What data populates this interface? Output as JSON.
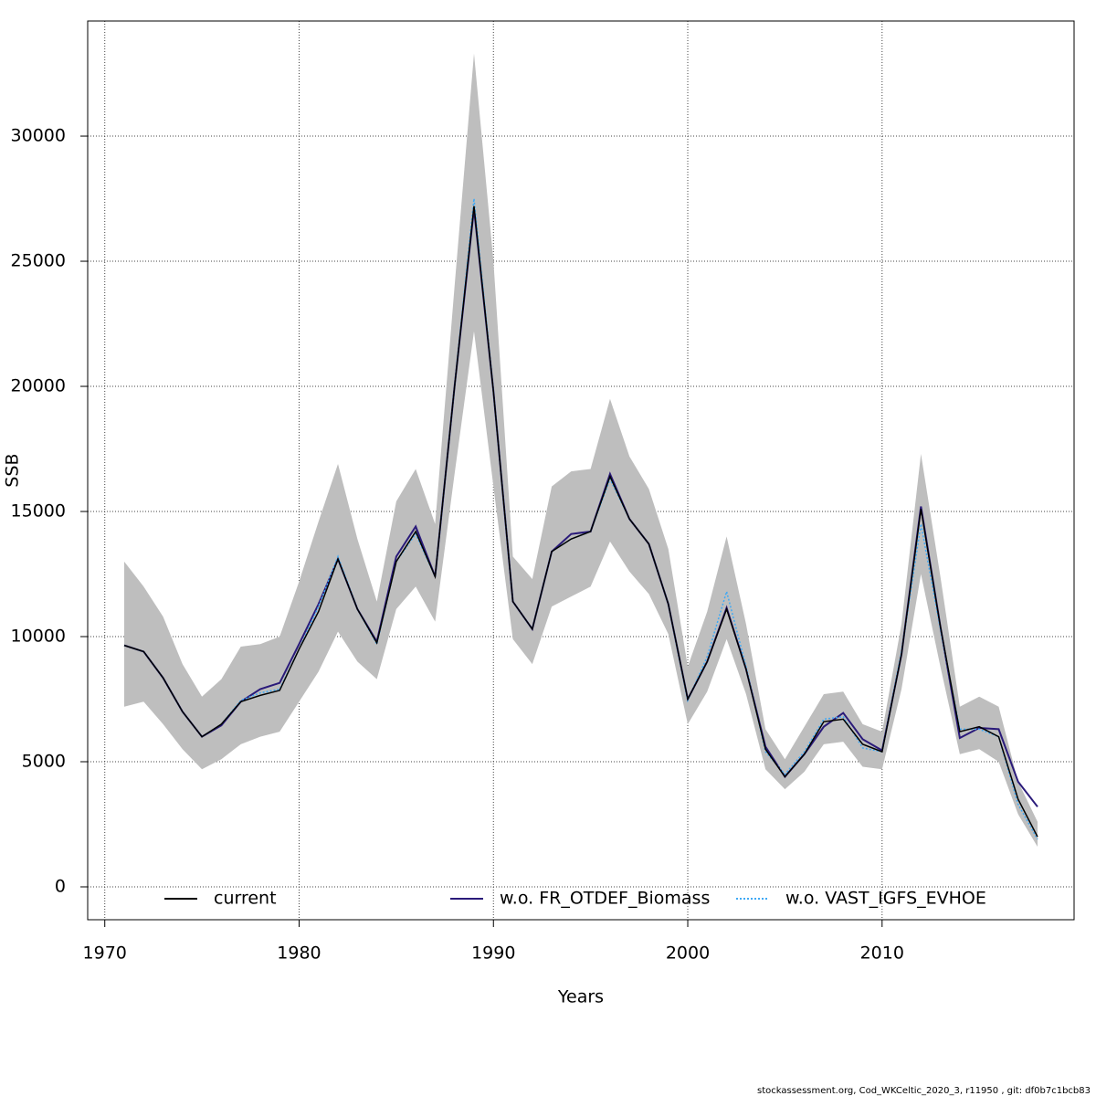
{
  "chart_data": {
    "type": "line",
    "xlabel": "Years",
    "ylabel": "SSB",
    "footer": "stockassessment.org, Cod_WKCeltic_2020_3, r11950 , git: df0b7c1bcb83",
    "x": [
      1971,
      1972,
      1973,
      1974,
      1975,
      1976,
      1977,
      1978,
      1979,
      1980,
      1981,
      1982,
      1983,
      1984,
      1985,
      1986,
      1987,
      1988,
      1989,
      1990,
      1991,
      1992,
      1993,
      1994,
      1995,
      1996,
      1997,
      1998,
      1999,
      2000,
      2001,
      2002,
      2003,
      2004,
      2005,
      2006,
      2007,
      2008,
      2009,
      2010,
      2011,
      2012,
      2013,
      2014,
      2015,
      2016,
      2017,
      2018
    ],
    "band": {
      "color": "#bebebe",
      "upper": [
        13000,
        12000,
        10800,
        8900,
        7600,
        8300,
        9600,
        9700,
        10000,
        12200,
        14600,
        16900,
        13900,
        11400,
        15400,
        16700,
        14500,
        24000,
        33300,
        25000,
        13200,
        12300,
        16000,
        16600,
        16700,
        19500,
        17200,
        15900,
        13500,
        8800,
        11000,
        14000,
        10500,
        6300,
        5100,
        6400,
        7700,
        7800,
        6500,
        6200,
        10500,
        17300,
        12400,
        7200,
        7600,
        7200,
        4200,
        2600
      ],
      "lower": [
        7200,
        7400,
        6500,
        5500,
        4700,
        5100,
        5700,
        6000,
        6200,
        7400,
        8600,
        10200,
        9000,
        8300,
        11100,
        12000,
        10600,
        16500,
        22200,
        16000,
        9900,
        8900,
        11200,
        11600,
        12000,
        13800,
        12600,
        11700,
        10100,
        6500,
        7800,
        9900,
        7700,
        4700,
        3900,
        4600,
        5700,
        5800,
        4800,
        4700,
        7900,
        12500,
        8800,
        5300,
        5500,
        5000,
        2900,
        1600
      ]
    },
    "series": [
      {
        "name": "current",
        "color": "#000000",
        "linestyle": "solid",
        "values": [
          9650,
          9400,
          8350,
          7000,
          6000,
          6500,
          7400,
          7650,
          7850,
          9500,
          11000,
          13100,
          11100,
          9750,
          13000,
          14200,
          12400,
          20000,
          27200,
          19800,
          11400,
          10300,
          13400,
          13900,
          14200,
          16400,
          14700,
          13700,
          11300,
          7500,
          9000,
          11100,
          8700,
          5500,
          4400,
          5300,
          6600,
          6700,
          5700,
          5400,
          9300,
          15100,
          10400,
          6200,
          6400,
          6000,
          3500,
          2000
        ]
      },
      {
        "name": "w.o. FR_OTDEF_Biomass",
        "color": "#2a1a7a",
        "linestyle": "solid",
        "values": [
          9650,
          9400,
          8350,
          7000,
          6000,
          6450,
          7400,
          7900,
          8150,
          9700,
          11300,
          13100,
          11100,
          9800,
          13200,
          14400,
          12400,
          20000,
          27100,
          19800,
          11400,
          10300,
          13400,
          14100,
          14200,
          16500,
          14700,
          13700,
          11300,
          7500,
          9000,
          11150,
          8700,
          5600,
          4400,
          5300,
          6400,
          6950,
          5900,
          5450,
          9300,
          15200,
          10400,
          5950,
          6350,
          6300,
          4200,
          3200
        ]
      },
      {
        "name": "w.o. VAST_IGFS_EVHOE",
        "color": "#3fa9f5",
        "linestyle": "dotted",
        "values": [
          9650,
          9400,
          8350,
          7000,
          6000,
          6500,
          7450,
          7750,
          7900,
          9500,
          11200,
          13200,
          11100,
          9700,
          13000,
          14100,
          12400,
          20000,
          27500,
          19800,
          11400,
          10300,
          13400,
          13900,
          14200,
          16300,
          14700,
          13700,
          11300,
          7450,
          9200,
          11800,
          8800,
          5400,
          4500,
          5400,
          6700,
          6800,
          5550,
          5400,
          9400,
          14500,
          10300,
          6300,
          6300,
          6000,
          3300,
          1900
        ]
      }
    ],
    "xlim": [
      1969.12,
      2019.88
    ],
    "xticks": [
      1970,
      1980,
      1990,
      2000,
      2010
    ],
    "ylim": [
      -1314,
      34600
    ],
    "yticks": [
      0,
      5000,
      10000,
      15000,
      20000,
      25000,
      30000
    ],
    "grid": true,
    "legend": "bottom"
  }
}
